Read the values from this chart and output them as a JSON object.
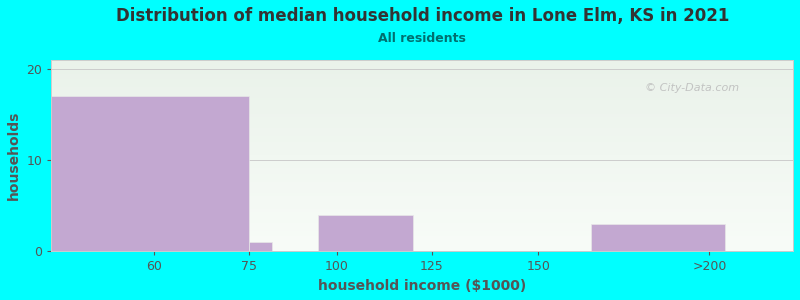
{
  "title": "Distribution of median household income in Lone Elm, KS in 2021",
  "subtitle": "All residents",
  "xlabel": "household income ($1000)",
  "ylabel": "households",
  "background_color": "#00FFFF",
  "bar_color": "#C3A8D1",
  "bar_edge_color": "#E8E8E8",
  "title_color": "#333333",
  "subtitle_color": "#007070",
  "axis_label_color": "#555555",
  "tick_color": "#555555",
  "watermark": "© City-Data.com",
  "ylim": [
    0,
    21
  ],
  "yticks": [
    0,
    10,
    20
  ],
  "bar_lefts": [
    20,
    72,
    90,
    112,
    162
  ],
  "bar_widths": [
    52,
    6,
    25,
    13,
    35
  ],
  "bar_heights": [
    17,
    1,
    4,
    0,
    3
  ],
  "xtick_positions": [
    47,
    72,
    95,
    120,
    148,
    193
  ],
  "xtick_labels": [
    "60",
    "75",
    "100",
    "125",
    "150",
    ">200"
  ],
  "plot_xlim": [
    20,
    215
  ],
  "plot_ylim": [
    0,
    21
  ],
  "gridline_color": "#CCCCCC",
  "plot_bg_top_color": "#EAF2EA",
  "plot_bg_bottom_color": "#F8FCF8",
  "watermark_color": "#BBBBBB"
}
